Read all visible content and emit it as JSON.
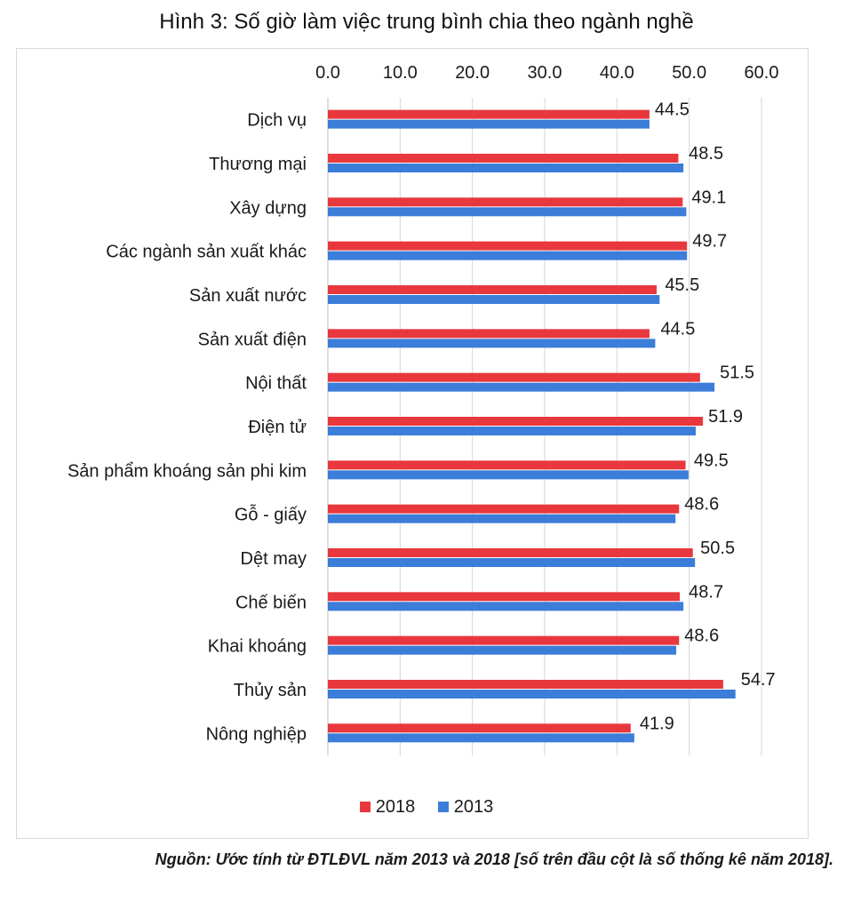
{
  "chart_data": {
    "type": "bar",
    "orientation": "horizontal",
    "title": "Hình 3: Số giờ làm việc trung bình chia theo ngành nghề",
    "categories": [
      "Dịch vụ",
      "Thương mại",
      "Xây dựng",
      "Các ngành sản xuất khác",
      "Sản xuất nước",
      "Sản xuất điện",
      "Nội thất",
      "Điện tử",
      "Sản phẩm khoáng sản phi kim",
      "Gỗ - giấy",
      "Dệt may",
      "Chế biến",
      "Khai khoáng",
      "Thủy sản",
      "Nông nghiệp"
    ],
    "series": [
      {
        "name": "2018",
        "color": "#e8383d",
        "values": [
          44.5,
          48.5,
          49.1,
          49.7,
          45.5,
          44.5,
          51.5,
          51.9,
          49.5,
          48.6,
          50.5,
          48.7,
          48.6,
          54.7,
          41.9
        ]
      },
      {
        "name": "2013",
        "color": "#3b7dd8",
        "values": [
          44.5,
          49.2,
          49.6,
          49.7,
          45.9,
          45.3,
          53.5,
          50.9,
          49.9,
          48.1,
          50.8,
          49.2,
          48.2,
          56.4,
          42.4
        ]
      }
    ],
    "data_labels": [
      "44.5",
      "48.5",
      "49.1",
      "49.7",
      "45.5",
      "44.5",
      "51.5",
      "51.9",
      "49.5",
      "48.6",
      "50.5",
      "48.7",
      "48.6",
      "54.7",
      "41.9"
    ],
    "xlim": [
      0,
      60
    ],
    "x_ticks": [
      "0.0",
      "10.0",
      "20.0",
      "30.0",
      "40.0",
      "50.0",
      "60.0"
    ],
    "x_axis_position": "top",
    "grid": true,
    "legend": "bottom"
  },
  "source_note": "Nguồn: Ước tính từ ĐTLĐVL năm 2013 và 2018 [số trên đầu cột là số thống kê năm 2018]."
}
